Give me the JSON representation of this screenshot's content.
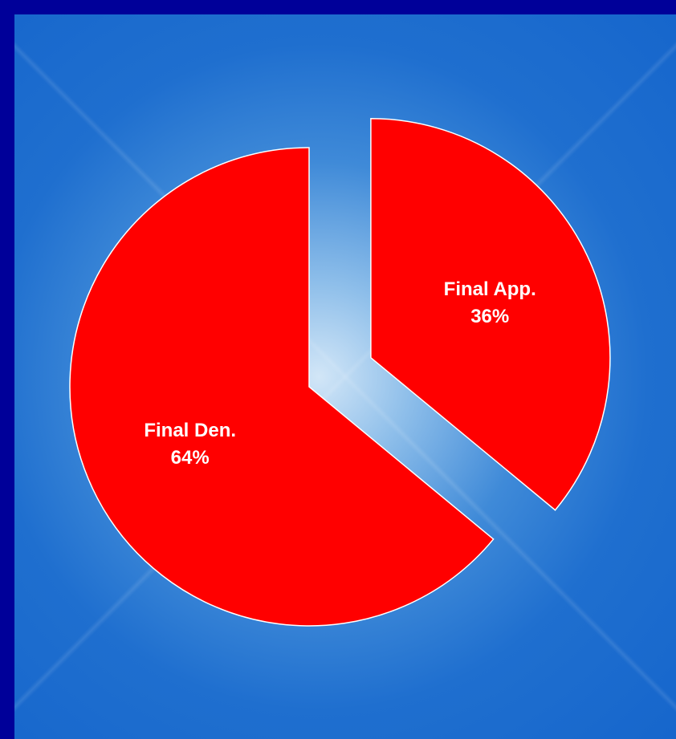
{
  "chart_data": {
    "type": "pie",
    "title": "",
    "categories": [
      "Final Den.",
      "Final App."
    ],
    "values": [
      64,
      36
    ],
    "value_labels": [
      "64%",
      "36%"
    ],
    "exploded": [
      "Final App."
    ],
    "start_angle_deg": 0,
    "direction": "clockwise",
    "legend": "none"
  },
  "colors": {
    "slice_fill": "#ff0000",
    "slice_stroke": "#ffffff",
    "label_text": "#ffffff",
    "frame": "#000099",
    "background": "#1666cc"
  }
}
